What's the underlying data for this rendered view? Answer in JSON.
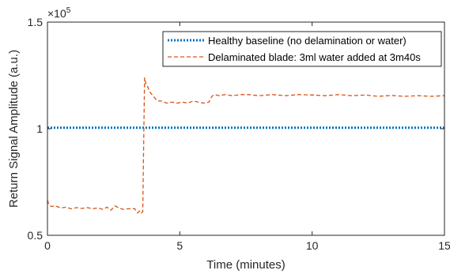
{
  "chart_data": {
    "type": "line",
    "xlabel": "Time (minutes)",
    "ylabel": "Return Signal Amplitude (a.u.)",
    "y_exponent_base": "×10",
    "y_exponent_power": "5",
    "xlim": [
      0,
      15
    ],
    "ylim": [
      0.5,
      1.5
    ],
    "y_scale_factor": 100000,
    "x_ticks": [
      0,
      5,
      10,
      15
    ],
    "x_tick_labels": [
      "0",
      "5",
      "10",
      "15"
    ],
    "y_ticks": [
      0.5,
      1,
      1.5
    ],
    "y_tick_labels": [
      "0.5",
      "1",
      "1.5"
    ],
    "grid": false,
    "legend_position": "top-right",
    "series": [
      {
        "name": "Healthy baseline (no delamination or water)",
        "color": "#0072BD",
        "style": "dotted",
        "x": [
          0,
          15
        ],
        "y": [
          1.005,
          1.005
        ]
      },
      {
        "name": "Delaminated blade: 3ml water added at 3m40s",
        "color": "#D95319",
        "style": "dashed",
        "x": [
          0,
          0.05,
          0.15,
          0.3,
          0.5,
          0.7,
          0.9,
          1.1,
          1.3,
          1.5,
          1.7,
          1.9,
          2.1,
          2.25,
          2.4,
          2.55,
          2.7,
          2.85,
          3.0,
          3.15,
          3.3,
          3.4,
          3.5,
          3.55,
          3.6,
          3.67,
          3.72,
          3.78,
          3.85,
          3.95,
          4.05,
          4.15,
          4.3,
          4.5,
          4.7,
          4.9,
          5.1,
          5.3,
          5.5,
          5.7,
          5.9,
          6.1,
          6.2,
          6.3,
          6.5,
          6.7,
          7.0,
          7.3,
          7.6,
          8.0,
          8.5,
          9.0,
          9.5,
          10.0,
          10.5,
          11.0,
          11.5,
          12.0,
          12.5,
          13.0,
          13.5,
          14.0,
          14.5,
          15.0
        ],
        "y": [
          0.665,
          0.645,
          0.635,
          0.638,
          0.628,
          0.632,
          0.624,
          0.63,
          0.626,
          0.63,
          0.625,
          0.628,
          0.622,
          0.632,
          0.618,
          0.638,
          0.628,
          0.622,
          0.624,
          0.625,
          0.625,
          0.605,
          0.615,
          0.605,
          0.61,
          1.24,
          1.21,
          1.2,
          1.175,
          1.16,
          1.145,
          1.13,
          1.13,
          1.12,
          1.125,
          1.12,
          1.125,
          1.12,
          1.13,
          1.125,
          1.12,
          1.125,
          1.15,
          1.16,
          1.155,
          1.16,
          1.155,
          1.16,
          1.16,
          1.155,
          1.16,
          1.155,
          1.16,
          1.158,
          1.155,
          1.16,
          1.155,
          1.158,
          1.152,
          1.156,
          1.152,
          1.155,
          1.152,
          1.155
        ]
      }
    ]
  }
}
